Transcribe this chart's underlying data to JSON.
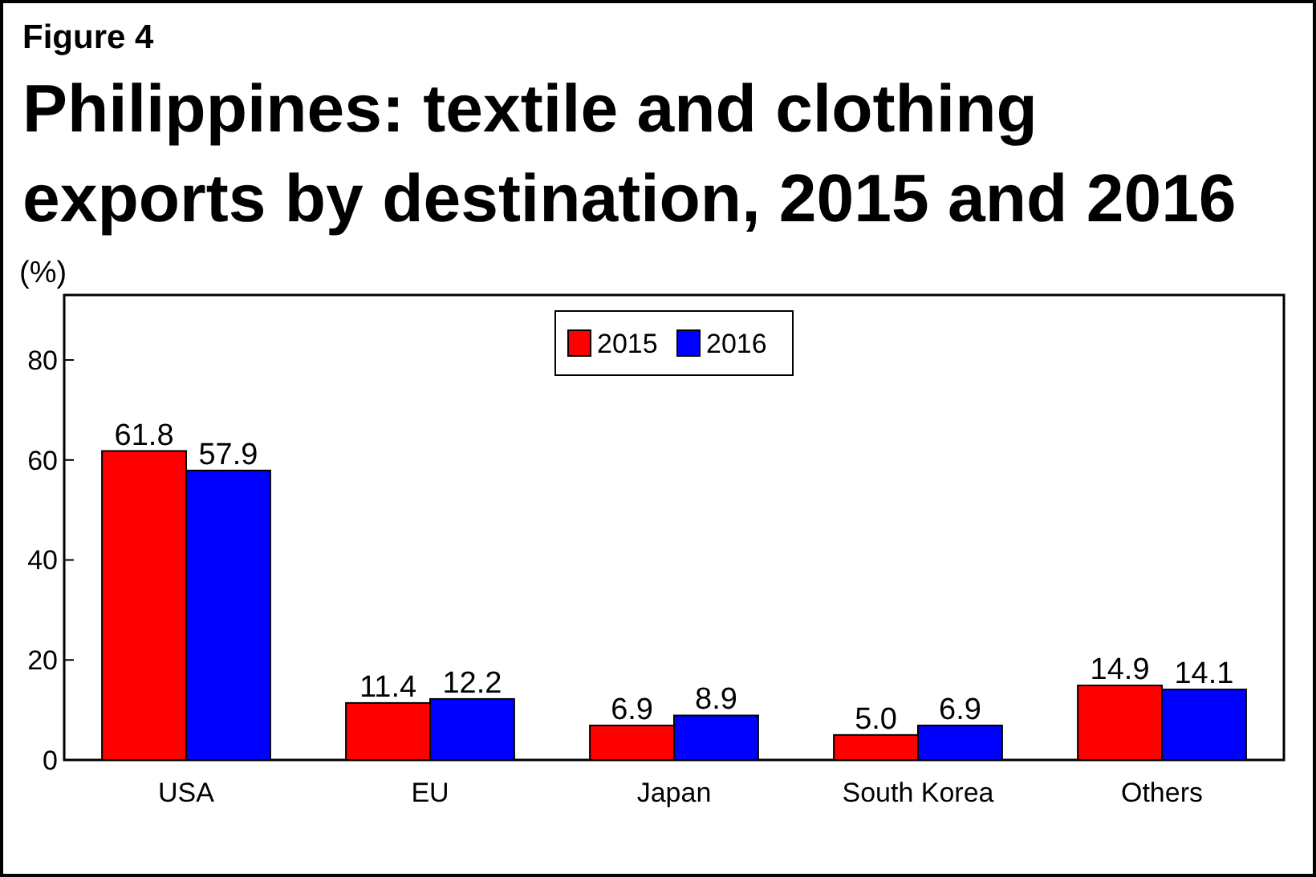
{
  "chart_data": {
    "type": "bar",
    "title": "Philippines: textile and clothing exports by destination, 2015 and 2016",
    "annotations": [
      "Figure 4"
    ],
    "ylabel": "(%)",
    "categories": [
      "USA",
      "EU",
      "Japan",
      "South Korea",
      "Others"
    ],
    "series": [
      {
        "name": "2015",
        "color": "#ff0000",
        "values": [
          61.8,
          11.4,
          6.9,
          5.0,
          14.9
        ]
      },
      {
        "name": "2016",
        "color": "#0000ff",
        "values": [
          57.9,
          12.2,
          8.9,
          6.9,
          14.1
        ]
      }
    ],
    "value_labels": [
      [
        "61.8",
        "11.4",
        "6.9",
        "5.0",
        "14.9"
      ],
      [
        "57.9",
        "12.2",
        "8.9",
        "6.9",
        "14.1"
      ]
    ],
    "ylim": [
      0,
      93
    ],
    "yticks": [
      0,
      20,
      40,
      60,
      80
    ],
    "legend": "top",
    "grid": false
  }
}
